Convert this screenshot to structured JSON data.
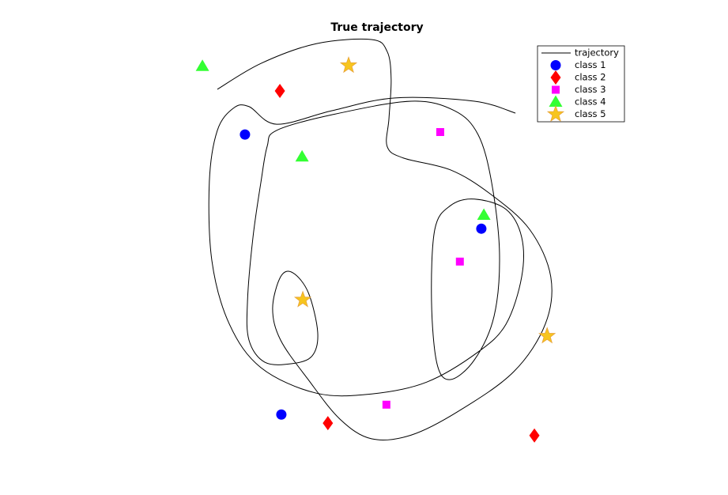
{
  "chart_data": {
    "type": "scatter",
    "title": "True trajectory",
    "xlim": [
      0,
      100
    ],
    "ylim": [
      0,
      100
    ],
    "legend": "northeast",
    "series": [
      {
        "name": "trajectory",
        "type": "line",
        "color": "#000000",
        "x": [
          7.6,
          19.6,
          34.8,
          50.0,
          54.3,
          55.4,
          54.8,
          54.3,
          58.7,
          71.7,
          82.6,
          93.5,
          99.3,
          97.8,
          89.1,
          73.9,
          60.9,
          50.0,
          41.3,
          32.6,
          25.0,
          22.8,
          25.0,
          28.3,
          32.6,
          35.2,
          33.7,
          28.3,
          20.7,
          16.3,
          15.9,
          17.4,
          19.6,
          21.3,
          23.9,
          39.1,
          60.9,
          72.8,
          79.3,
          83.0,
          85.2,
          83.7,
          78.3,
          71.7,
          68.0,
          66.5,
          67.4,
          71.7,
          78.3,
          87.0,
          91.3,
          91.3,
          87.0,
          79.3,
          65.2,
          50.0,
          34.8,
          19.6,
          10.9,
          6.1,
          5.4,
          7.6,
          12.0,
          16.3,
          23.9,
          39.1,
          56.5,
          78.3,
          89.6
        ],
        "y": [
          87.9,
          94.2,
          99.0,
          100.0,
          97.1,
          90.4,
          80.8,
          74.0,
          71.2,
          68.3,
          62.5,
          53.8,
          42.3,
          30.8,
          19.2,
          9.6,
          3.8,
          2.9,
          7.7,
          17.3,
          26.9,
          34.6,
          42.3,
          43.3,
          38.5,
          28.8,
          23.1,
          21.2,
          21.5,
          26.9,
          36.5,
          51.9,
          65.4,
          74.0,
          77.9,
          81.7,
          85.0,
          82.7,
          76.9,
          65.4,
          48.1,
          32.7,
          22.1,
          17.3,
          21.2,
          36.5,
          53.8,
          59.6,
          61.2,
          58.7,
          51.9,
          42.3,
          30.8,
          24.0,
          16.7,
          13.8,
          14.0,
          20.2,
          30.8,
          46.2,
          65.4,
          77.9,
          83.3,
          83.7,
          79.4,
          82.7,
          85.8,
          85.0,
          82.1
        ]
      },
      {
        "name": "class 1",
        "marker": "circle",
        "color": "#0000ff",
        "x": [
          15.2,
          80.2,
          25.2
        ],
        "y": [
          76.9,
          54.0,
          8.8
        ]
      },
      {
        "name": "class 2",
        "marker": "diamond",
        "color": "#ff0000",
        "x": [
          24.8,
          38.0,
          94.8
        ],
        "y": [
          87.5,
          6.7,
          3.7
        ]
      },
      {
        "name": "class 3",
        "marker": "square",
        "color": "#ff00ff",
        "x": [
          68.9,
          74.3,
          54.1
        ],
        "y": [
          77.5,
          46.0,
          11.2
        ]
      },
      {
        "name": "class 4",
        "marker": "triangle",
        "color": "#33ff33",
        "x": [
          3.5,
          30.9,
          80.9
        ],
        "y": [
          93.5,
          71.5,
          57.3
        ]
      },
      {
        "name": "class 5",
        "marker": "star",
        "color": "#f7c51e",
        "x": [
          43.7,
          31.1,
          98.3
        ],
        "y": [
          93.7,
          36.7,
          27.9
        ]
      }
    ]
  }
}
